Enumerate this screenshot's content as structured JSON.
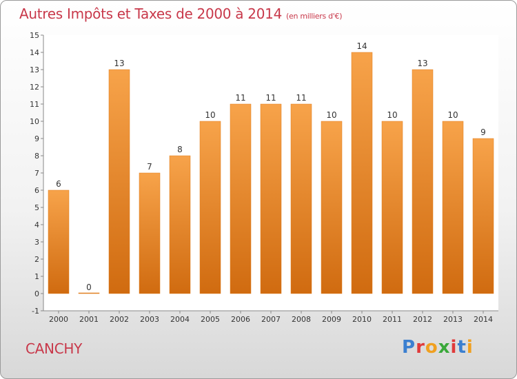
{
  "title": {
    "main": "Autres Impôts et Taxes de 2000 à 2014",
    "unit": "(en milliers d'€)"
  },
  "place": "CANCHY",
  "logo": {
    "text": "Proxiti",
    "letters": [
      "P",
      "r",
      "o",
      "x",
      "i",
      "t",
      "i"
    ],
    "colors": [
      "#3b7fd0",
      "#e03a3a",
      "#f0a020",
      "#3aa83a",
      "#e03a3a",
      "#3b7fd0",
      "#f0a020"
    ]
  },
  "colors": {
    "bar": "#f08a24",
    "bar_light": "#f7a34a",
    "bar_dark": "#d06b10",
    "title": "#c8384a"
  },
  "chart_data": {
    "type": "bar",
    "categories": [
      "2000",
      "2001",
      "2002",
      "2003",
      "2004",
      "2005",
      "2006",
      "2007",
      "2008",
      "2009",
      "2010",
      "2011",
      "2012",
      "2013",
      "2014"
    ],
    "values": [
      6,
      0,
      13,
      7,
      8,
      10,
      11,
      11,
      11,
      10,
      14,
      10,
      13,
      10,
      9
    ],
    "title": "Autres Impôts et Taxes de 2000 à 2014",
    "subtitle": "(en milliers d'€)",
    "ylim": [
      -1,
      15
    ],
    "yticks": [
      -1,
      0,
      1,
      2,
      3,
      4,
      5,
      6,
      7,
      8,
      9,
      10,
      11,
      12,
      13,
      14,
      15
    ],
    "grid": false
  }
}
